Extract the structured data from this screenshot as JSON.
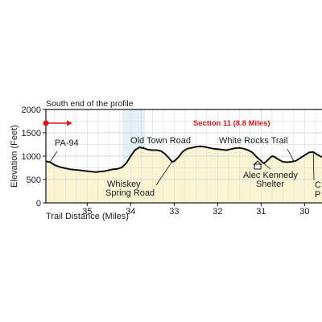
{
  "chart_data": {
    "type": "line",
    "title": "South end of the profile",
    "section_label": "Section 11  (8.8 Miles)",
    "xlabel": "Trail Distance (Miles)",
    "ylabel": "Elevation (Feet)",
    "xlim": [
      29.6,
      35.95
    ],
    "x_reversed": true,
    "ylim": [
      0,
      2000
    ],
    "x_ticks": [
      35,
      34,
      33,
      32,
      31,
      30
    ],
    "y_ticks": [
      0,
      500,
      1000,
      1500,
      2000
    ],
    "grid": true,
    "colors": {
      "line": "#111111",
      "fill": "#fbf4d2",
      "band": "#dfeef5",
      "section": "#d6181f",
      "direction_marker": "#d6181f"
    },
    "series": [
      {
        "x": [
          35.95,
          35.85,
          35.75,
          35.6,
          35.4,
          35.2,
          35.0,
          34.8,
          34.6,
          34.5,
          34.4,
          34.3,
          34.2,
          34.1,
          34.0,
          33.9,
          33.8,
          33.7,
          33.6,
          33.5,
          33.4,
          33.3,
          33.2,
          33.1,
          33.05,
          33.0,
          32.9,
          32.8,
          32.7,
          32.6,
          32.5,
          32.4,
          32.3,
          32.2,
          32.1,
          32.0,
          31.9,
          31.8,
          31.7,
          31.6,
          31.5,
          31.4,
          31.3,
          31.2,
          31.1,
          31.0,
          30.95,
          30.9,
          30.8,
          30.75,
          30.7,
          30.6,
          30.5,
          30.4,
          30.3,
          30.2,
          30.1,
          30.0,
          29.9,
          29.8,
          29.7,
          29.6
        ],
        "y": [
          890,
          870,
          810,
          760,
          720,
          700,
          680,
          660,
          680,
          700,
          720,
          730,
          760,
          850,
          1000,
          1130,
          1190,
          1170,
          1140,
          1130,
          1130,
          1110,
          1040,
          940,
          880,
          890,
          980,
          1100,
          1160,
          1180,
          1200,
          1210,
          1200,
          1180,
          1160,
          1150,
          1140,
          1130,
          1150,
          1170,
          1180,
          1160,
          1130,
          1080,
          980,
          900,
          850,
          870,
          960,
          1000,
          990,
          930,
          880,
          870,
          880,
          900,
          960,
          1020,
          1080,
          1090,
          1030,
          980
        ]
      }
    ],
    "annotations": [
      {
        "text": "PA-94",
        "x": 35.95,
        "y": 890
      },
      {
        "text": "Old Town Road",
        "x": 33.8,
        "y": 1190
      },
      {
        "text": "Whiskey",
        "x": 33.05,
        "y": 880
      },
      {
        "text": "Spring Road",
        "x": 33.05,
        "y": 880
      },
      {
        "text": "White Rocks Trail",
        "x": 30.2,
        "y": 900
      },
      {
        "text": "Alec Kennedy",
        "x": 30.95,
        "y": 850
      },
      {
        "text": "Shelter",
        "x": 30.95,
        "y": 850
      },
      {
        "text": "C",
        "x": 29.8,
        "y": 1090
      },
      {
        "text": "P",
        "x": 29.8,
        "y": 1090
      }
    ]
  }
}
